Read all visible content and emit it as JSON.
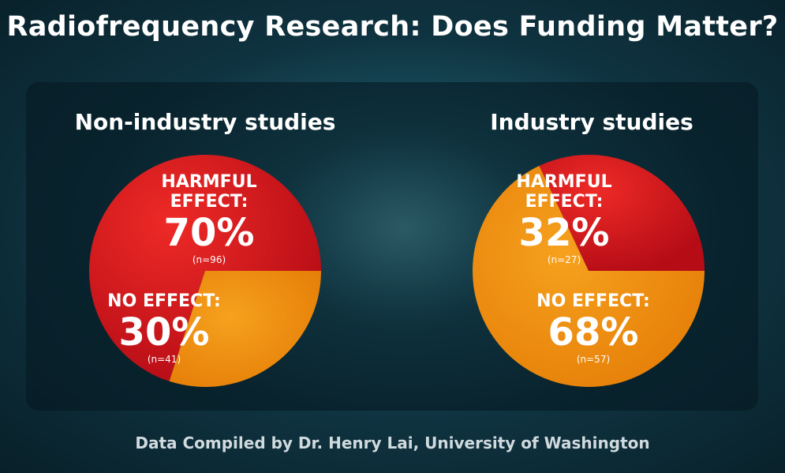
{
  "title": "Radiofrequency Research: Does Funding Matter?",
  "footer": "Data Compiled by Dr. Henry Lai, University of Washington",
  "colors": {
    "harmful": "#d8141e",
    "no_effect": "#f0900c"
  },
  "chart_data": [
    {
      "type": "pie",
      "title": "Non-industry studies",
      "slices": [
        {
          "label_line1": "HARMFUL",
          "label_line2": "EFFECT:",
          "percent": "70%",
          "n": "(n=96)",
          "value": 70,
          "count": 96
        },
        {
          "label_line1": "NO EFFECT:",
          "label_line2": "",
          "percent": "30%",
          "n": "(n=41)",
          "value": 30,
          "count": 41
        }
      ]
    },
    {
      "type": "pie",
      "title": "Industry studies",
      "slices": [
        {
          "label_line1": "HARMFUL",
          "label_line2": "EFFECT:",
          "percent": "32%",
          "n": "(n=27)",
          "value": 32,
          "count": 27
        },
        {
          "label_line1": "NO EFFECT:",
          "label_line2": "",
          "percent": "68%",
          "n": "(n=57)",
          "value": 68,
          "count": 57
        }
      ]
    }
  ]
}
